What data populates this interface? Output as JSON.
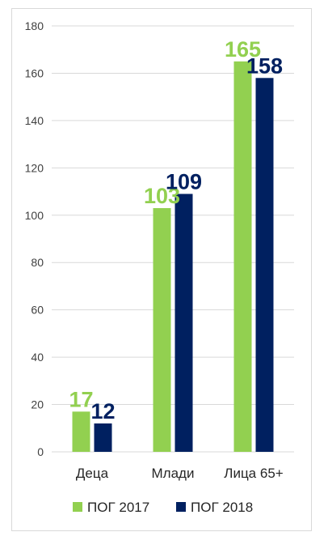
{
  "chart_data": {
    "type": "bar",
    "title": "",
    "xlabel": "",
    "ylabel": "",
    "ylim": [
      0,
      180
    ],
    "yticks": [
      0,
      20,
      40,
      60,
      80,
      100,
      120,
      140,
      160,
      180
    ],
    "grid": true,
    "legend_position": "bottom",
    "categories": [
      "Деца",
      "Млади",
      "Лица 65+"
    ],
    "series": [
      {
        "name": "ПОГ 2017",
        "color": "#92d050",
        "values": [
          17,
          103,
          165
        ]
      },
      {
        "name": "ПОГ 2018",
        "color": "#002060",
        "values": [
          12,
          109,
          158
        ]
      }
    ]
  }
}
